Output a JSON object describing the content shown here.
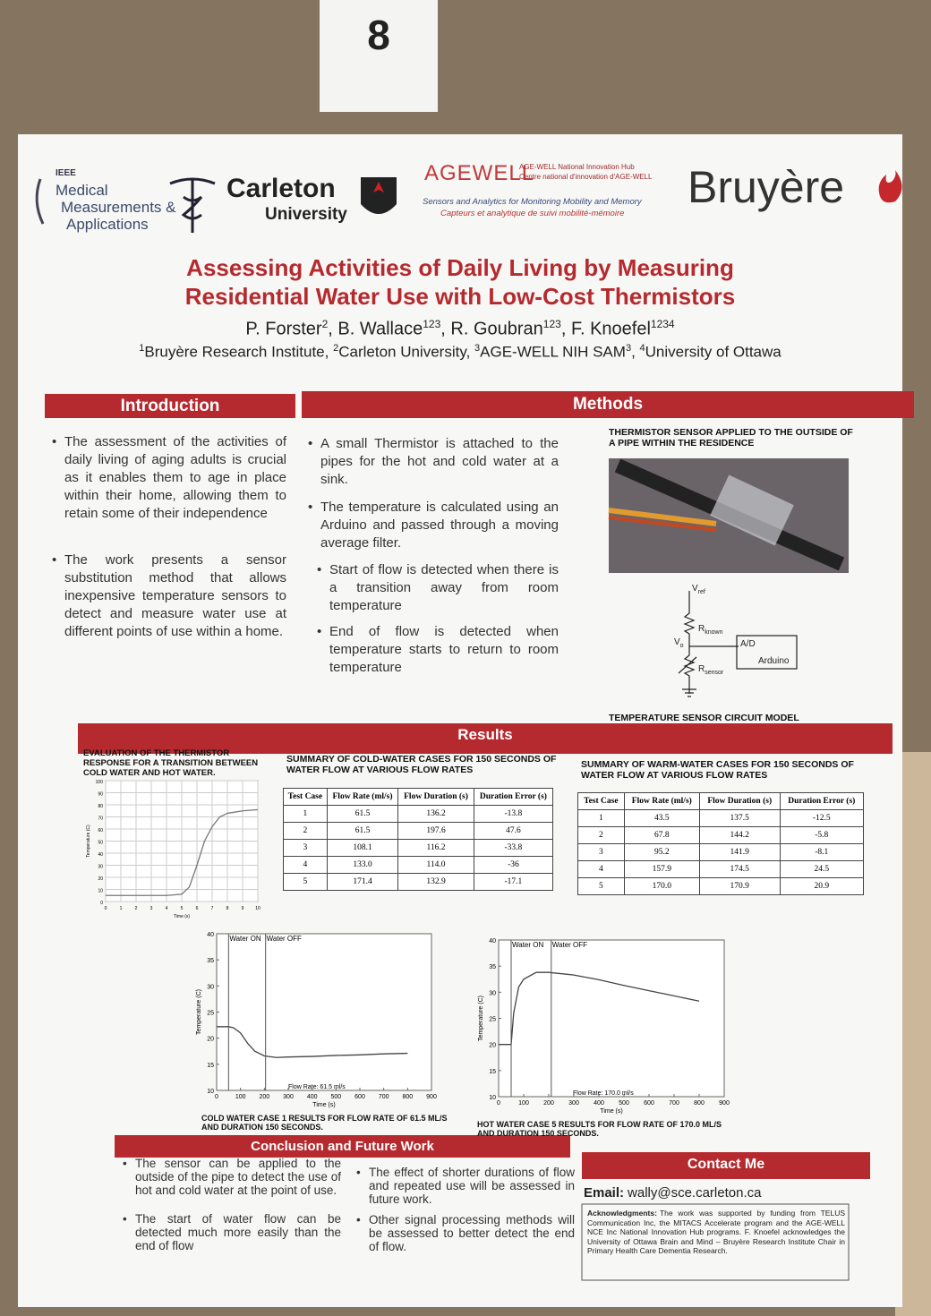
{
  "sign": "8",
  "logos": {
    "ieee": "IEEE",
    "mma": [
      "Medical",
      "Measurements &",
      "Applications"
    ],
    "carleton": "Carleton",
    "carleton_sub": "University",
    "agewell": "AGEWELL",
    "agewell_hub": [
      "AGE-WELL National Innovation Hub",
      "Centre national d'innovation d'AGE-WELL"
    ],
    "agewell_tag": [
      "Sensors and Analytics for Monitoring Mobility and Memory",
      "Capteurs et analytique de suivi mobilité-mémoire"
    ],
    "bruyere": "Bruyère"
  },
  "title": [
    "Assessing Activities of Daily Living by Measuring",
    "Residential Water Use with Low-Cost Thermistors"
  ],
  "authors": {
    "separator": ", ",
    "list": [
      {
        "name": "P. Forster",
        "sup": "2"
      },
      {
        "name": "B. Wallace",
        "sup": "123"
      },
      {
        "name": "R. Goubran",
        "sup": "123"
      },
      {
        "name": "F. Knoefel",
        "sup": "1234"
      }
    ]
  },
  "affiliations": [
    {
      "sup": "1",
      "name": "Bruyère Research Institute"
    },
    {
      "sup": "2",
      "name": "Carleton University"
    },
    {
      "sup": "3",
      "name": "AGE-WELL NIH SAM",
      "trail": "3"
    },
    {
      "sup": "4",
      "name": "University of Ottawa"
    }
  ],
  "introduction": {
    "heading": "Introduction",
    "bullets": [
      "The assessment of the activities of daily living of aging adults is crucial as it enables them to age in place within their home, allowing them to retain some of their independence",
      "The work presents a sensor substitution method that allows inexpensive temperature sensors to detect and measure water use at different points of use within a home."
    ]
  },
  "methods": {
    "heading": "Methods",
    "bullets": [
      "A small Thermistor is attached to the pipes for the hot and cold water at a sink.",
      "The temperature is calculated using an Arduino and passed through a moving average filter.",
      "Start of flow is detected when there is a transition away from room temperature",
      "End of flow is detected when temperature starts to return to room temperature"
    ],
    "photo_caption": "THERMISTOR SENSOR APPLIED TO THE OUTSIDE OF A PIPE WITHIN THE RESIDENCE",
    "circuit": {
      "vref": [
        "V",
        "ref"
      ],
      "rknown": [
        "R",
        "known"
      ],
      "vo": [
        "V",
        "o"
      ],
      "rsensor": [
        "R",
        "sensor"
      ],
      "ad": "A/D",
      "arduino": "Arduino"
    },
    "circuit_caption": "TEMPERATURE SENSOR CIRCUIT MODEL"
  },
  "results": {
    "heading": "Results",
    "eval_plot": {
      "caption": "EVALUATION OF THE THERMISTOR RESPONSE FOR A TRANSITION BETWEEN COLD WATER AND HOT WATER.",
      "xlabel": "Time (s)",
      "ylabel": "Temperature (C)",
      "xlim": [
        0,
        10
      ],
      "ylim": [
        0,
        100
      ],
      "xticks": [
        0,
        1,
        2,
        3,
        4,
        5,
        6,
        7,
        8,
        9,
        10
      ],
      "yticks": [
        0,
        10,
        20,
        30,
        40,
        50,
        60,
        70,
        80,
        90,
        100
      ],
      "grid": true,
      "x": [
        0,
        4,
        5,
        5.5,
        6,
        6.5,
        7,
        7.5,
        8,
        9,
        10
      ],
      "values": [
        5,
        5,
        6,
        12,
        30,
        50,
        62,
        70,
        73,
        75,
        76
      ],
      "color": "#777"
    },
    "cold_table": {
      "caption": "SUMMARY OF COLD-WATER CASES FOR 150 SECONDS OF WATER FLOW AT VARIOUS FLOW RATES",
      "header": [
        "Test Case",
        "Flow Rate (ml/s)",
        "Flow Duration (s)",
        "Duration Error (s)"
      ],
      "rows": [
        [
          "1",
          "61.5",
          "136.2",
          "-13.8"
        ],
        [
          "2",
          "61.5",
          "197.6",
          "47.6"
        ],
        [
          "3",
          "108.1",
          "116.2",
          "-33.8"
        ],
        [
          "4",
          "133.0",
          "114.0",
          "-36"
        ],
        [
          "5",
          "171.4",
          "132.9",
          "-17.1"
        ]
      ]
    },
    "warm_table": {
      "caption": "SUMMARY OF WARM-WATER CASES FOR 150 SECONDS OF WATER FLOW AT VARIOUS FLOW RATES",
      "header": [
        "Test Case",
        "Flow Rate (ml/s)",
        "Flow Duration (s)",
        "Duration Error (s)"
      ],
      "rows": [
        [
          "1",
          "43.5",
          "137.5",
          "-12.5"
        ],
        [
          "2",
          "67.8",
          "144.2",
          "-5.8"
        ],
        [
          "3",
          "95.2",
          "141.9",
          "-8.1"
        ],
        [
          "4",
          "157.9",
          "174.5",
          "24.5"
        ],
        [
          "5",
          "170.0",
          "170.9",
          "20.9"
        ]
      ]
    },
    "cold_plot": {
      "caption": "COLD WATER CASE 1 RESULTS FOR FLOW RATE OF 61.5 ML/S AND DURATION 150 SECONDS.",
      "xlabel": "Time (s)",
      "ylabel": "Temperature (C)",
      "xlim": [
        0,
        900
      ],
      "ylim": [
        10,
        40
      ],
      "xticks": [
        0,
        100,
        200,
        300,
        400,
        500,
        600,
        700,
        800,
        900
      ],
      "yticks": [
        10,
        15,
        20,
        25,
        30,
        35,
        40
      ],
      "x": [
        0,
        50,
        70,
        100,
        130,
        160,
        200,
        250,
        300,
        400,
        500,
        600,
        700,
        800
      ],
      "values": [
        22.2,
        22.2,
        22,
        21,
        19,
        17.5,
        16.6,
        16.3,
        16.4,
        16.5,
        16.7,
        16.8,
        17,
        17.1
      ],
      "color": "#444",
      "annotation": "Flow Rate: 61.5 ml/s",
      "markers": [
        {
          "label": "Water ON",
          "x": 50
        },
        {
          "label": "Water OFF",
          "x": 205
        }
      ]
    },
    "hot_plot": {
      "caption": "HOT WATER CASE 5 RESULTS FOR FLOW RATE OF 170.0 ML/S AND DURATION 150 SECONDS.",
      "xlabel": "Time (s)",
      "ylabel": "Temperature (C)",
      "xlim": [
        0,
        900
      ],
      "ylim": [
        10,
        40
      ],
      "xticks": [
        0,
        100,
        200,
        300,
        400,
        500,
        600,
        700,
        800,
        900
      ],
      "yticks": [
        10,
        15,
        20,
        25,
        30,
        35,
        40
      ],
      "x": [
        0,
        50,
        60,
        80,
        100,
        150,
        200,
        300,
        400,
        500,
        600,
        700,
        800
      ],
      "values": [
        20,
        20,
        26,
        31,
        32.5,
        33.8,
        33.8,
        33.3,
        32.4,
        31.3,
        30.3,
        29.3,
        28.3
      ],
      "color": "#444",
      "annotation": "Flow Rate: 170.0 ml/s",
      "markers": [
        {
          "label": "Water ON",
          "x": 50
        },
        {
          "label": "Water OFF",
          "x": 210
        }
      ]
    }
  },
  "conclusion": {
    "heading": "Conclusion and Future Work",
    "bullets": [
      "The sensor can be applied to the outside of the pipe to detect the use of hot and cold water at the point of use.",
      "The start of water flow can be detected much more easily than the end of flow",
      "The effect of shorter durations of flow and repeated use will be assessed in future work.",
      "Other signal processing methods will be assessed to better detect the end of flow."
    ]
  },
  "contact": {
    "heading": "Contact Me",
    "email_label": "Email:",
    "email": "wally@sce.carleton.ca",
    "ack_label": "Acknowledgments:",
    "ack": "The work was supported by funding from TELUS Communication Inc, the MITACS Accelerate program and the AGE-WELL NCE Inc National Innovation Hub programs. F. Knoefel acknowledges the University of Ottawa Brain and Mind – Bruyère Research Institute Chair in Primary Health Care Dementia Research."
  }
}
